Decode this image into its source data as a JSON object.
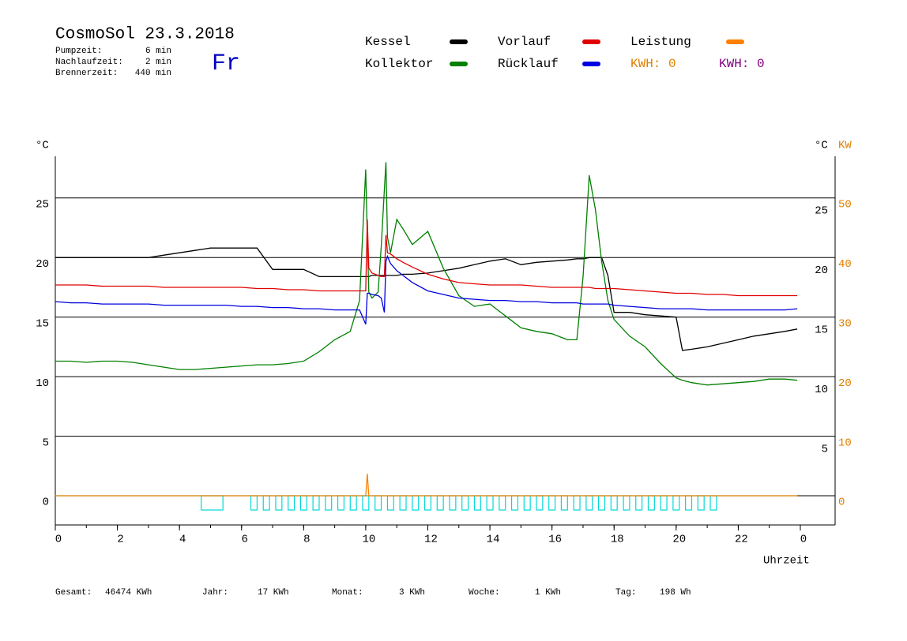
{
  "header": {
    "title": "CosmoSol 23.3.2018",
    "day": "Fr",
    "stats": [
      {
        "label": "Pumpzeit:",
        "value": "6 min"
      },
      {
        "label": "Nachlaufzeit:",
        "value": "2 min"
      },
      {
        "label": "Brennerzeit:",
        "value": "440 min"
      }
    ]
  },
  "footer": [
    {
      "label": "Gesamt:",
      "value": "46474 KWh"
    },
    {
      "label": "Jahr:",
      "value": "17 KWh"
    },
    {
      "label": "Monat:",
      "value": "3 KWh"
    },
    {
      "label": "Woche:",
      "value": "1 KWh"
    },
    {
      "label": "Tag:",
      "value": "198 Wh"
    }
  ],
  "chart_data": {
    "type": "line",
    "ylabel": "°C",
    "y2label_left": "°C",
    "y2label": "KW",
    "xlabel": "Uhrzeit",
    "kwh_labels": [
      {
        "text": "KWH: 0",
        "color": "#e08000"
      },
      {
        "text": "KWH: 0",
        "color": "#800080"
      }
    ],
    "xlim": [
      0,
      25.12
    ],
    "ylim": [
      -2.45,
      28.5
    ],
    "y2lim": [
      -4.9,
      57
    ],
    "xticks": [
      0,
      2,
      4,
      6,
      8,
      10,
      12,
      14,
      16,
      18,
      20,
      22,
      {
        "value": 24,
        "label": "0"
      }
    ],
    "yticks": [
      0,
      5,
      10,
      15,
      20,
      25
    ],
    "yticks_right": [
      5,
      10,
      15,
      20,
      25
    ],
    "y2ticks": [
      0,
      10,
      20,
      30,
      40,
      50
    ],
    "grid": true,
    "x": [
      0,
      0.5,
      1,
      1.5,
      2,
      2.5,
      3,
      3.5,
      4,
      4.5,
      5,
      5.5,
      6,
      6.5,
      7,
      7.5,
      8,
      8.5,
      9,
      9.5,
      9.8,
      10,
      10.05,
      10.1,
      10.2,
      10.4,
      10.5,
      10.6,
      10.65,
      10.7,
      10.8,
      11,
      11.2,
      11.5,
      12,
      12.5,
      13,
      13.5,
      14,
      14.5,
      15,
      15.5,
      16,
      16.5,
      16.8,
      17,
      17.2,
      17.4,
      17.6,
      17.8,
      18,
      18.5,
      19,
      19.5,
      20,
      20.2,
      20.5,
      21,
      21.5,
      22,
      22.5,
      23,
      23.5,
      23.9
    ],
    "series": [
      {
        "name": "Kessel",
        "color": "#000000",
        "values": [
          20.0,
          20.0,
          20.0,
          20.0,
          20.0,
          20.0,
          20.0,
          20.2,
          20.4,
          20.6,
          20.8,
          20.8,
          20.8,
          20.8,
          19.0,
          19.0,
          19.0,
          18.4,
          18.4,
          18.4,
          18.4,
          18.4,
          18.4,
          18.4,
          18.5,
          18.5,
          18.5,
          18.5,
          18.5,
          18.5,
          18.5,
          18.5,
          18.6,
          18.6,
          18.7,
          18.9,
          19.1,
          19.4,
          19.7,
          19.9,
          19.4,
          19.6,
          19.7,
          19.8,
          19.9,
          19.9,
          20.0,
          20.0,
          20.0,
          18.5,
          15.4,
          15.4,
          15.2,
          15.1,
          15.0,
          12.2,
          12.3,
          12.5,
          12.8,
          13.1,
          13.4,
          13.6,
          13.8,
          14.0
        ]
      },
      {
        "name": "Kollektor",
        "color": "#008000",
        "values": [
          11.3,
          11.3,
          11.2,
          11.3,
          11.3,
          11.2,
          11.0,
          10.8,
          10.6,
          10.6,
          10.7,
          10.8,
          10.9,
          11.0,
          11.0,
          11.1,
          11.3,
          12.1,
          13.1,
          13.8,
          16.4,
          27.4,
          21.7,
          17.1,
          16.6,
          17.1,
          21.0,
          25.7,
          28.0,
          21.7,
          20.4,
          23.2,
          22.4,
          21.1,
          22.2,
          19.1,
          16.8,
          15.9,
          16.1,
          15.1,
          14.1,
          13.8,
          13.6,
          13.1,
          13.1,
          18.4,
          26.9,
          24.0,
          19.7,
          16.4,
          14.8,
          13.4,
          12.5,
          11.1,
          9.9,
          9.7,
          9.5,
          9.3,
          9.4,
          9.5,
          9.6,
          9.8,
          9.8,
          9.7
        ]
      },
      {
        "name": "Vorlauf",
        "color": "#e00000",
        "values": [
          17.7,
          17.7,
          17.7,
          17.6,
          17.6,
          17.6,
          17.6,
          17.5,
          17.5,
          17.5,
          17.5,
          17.5,
          17.5,
          17.4,
          17.4,
          17.3,
          17.3,
          17.2,
          17.2,
          17.2,
          17.2,
          17.2,
          23.2,
          19.1,
          18.7,
          18.5,
          18.4,
          18.4,
          21.9,
          20.4,
          20.3,
          19.9,
          19.6,
          19.2,
          18.6,
          18.2,
          17.9,
          17.8,
          17.7,
          17.7,
          17.7,
          17.6,
          17.5,
          17.5,
          17.5,
          17.5,
          17.5,
          17.4,
          17.4,
          17.4,
          17.4,
          17.3,
          17.2,
          17.1,
          17.0,
          17.0,
          17.0,
          16.9,
          16.9,
          16.8,
          16.8,
          16.8,
          16.8,
          16.8
        ]
      },
      {
        "name": "Rücklauf",
        "color": "#0000e0",
        "values": [
          16.3,
          16.2,
          16.2,
          16.1,
          16.1,
          16.1,
          16.1,
          16.0,
          16.0,
          16.0,
          16.0,
          16.0,
          15.9,
          15.9,
          15.8,
          15.8,
          15.7,
          15.7,
          15.6,
          15.6,
          15.6,
          14.4,
          17.0,
          17.0,
          16.9,
          16.8,
          16.6,
          15.4,
          19.7,
          20.1,
          19.5,
          18.9,
          18.5,
          17.9,
          17.2,
          16.9,
          16.6,
          16.5,
          16.4,
          16.4,
          16.3,
          16.3,
          16.2,
          16.2,
          16.2,
          16.1,
          16.1,
          16.1,
          16.1,
          16.1,
          16.0,
          15.9,
          15.8,
          15.7,
          15.7,
          15.7,
          15.7,
          15.6,
          15.6,
          15.6,
          15.6,
          15.6,
          15.6,
          15.7
        ]
      },
      {
        "name": "Leistung",
        "color": "#ff8000",
        "axis": "y2",
        "values": [
          0,
          0,
          0,
          0,
          0,
          0,
          0,
          0,
          0,
          0,
          0,
          0,
          0,
          0,
          0,
          0,
          0,
          0,
          0,
          0,
          0,
          0,
          3.7,
          0,
          0,
          0,
          0,
          0,
          0,
          0,
          0,
          0,
          0,
          0,
          0,
          0,
          0,
          0,
          0,
          0,
          0,
          0,
          0,
          0,
          0,
          0,
          0,
          0,
          0,
          0,
          0,
          0,
          0,
          0,
          0,
          0,
          0,
          0,
          0,
          0,
          0,
          0,
          0,
          0
        ]
      }
    ],
    "pump_color": "#00d8d8",
    "pump_on": [
      [
        4.7,
        5.4
      ],
      [
        6.3,
        6.5
      ],
      [
        6.7,
        6.9
      ],
      [
        7.1,
        7.3
      ],
      [
        7.5,
        7.7
      ],
      [
        7.9,
        8.1
      ],
      [
        8.3,
        8.5
      ],
      [
        8.7,
        8.9
      ],
      [
        9.1,
        9.3
      ],
      [
        9.5,
        9.7
      ],
      [
        9.9,
        10.1
      ],
      [
        10.3,
        10.5
      ],
      [
        10.7,
        10.9
      ],
      [
        11.1,
        11.3
      ],
      [
        11.5,
        11.7
      ],
      [
        11.9,
        12.1
      ],
      [
        12.3,
        12.5
      ],
      [
        12.7,
        12.9
      ],
      [
        13.1,
        13.3
      ],
      [
        13.5,
        13.7
      ],
      [
        13.9,
        14.1
      ],
      [
        14.3,
        14.5
      ],
      [
        14.7,
        14.9
      ],
      [
        15.1,
        15.3
      ],
      [
        15.5,
        15.7
      ],
      [
        15.9,
        16.1
      ],
      [
        16.3,
        16.5
      ],
      [
        16.7,
        16.9
      ],
      [
        17.1,
        17.3
      ],
      [
        17.5,
        17.7
      ],
      [
        17.9,
        18.1
      ],
      [
        18.3,
        18.5
      ],
      [
        18.7,
        18.9
      ],
      [
        19.1,
        19.3
      ],
      [
        19.5,
        19.7
      ],
      [
        19.9,
        20.1
      ],
      [
        20.3,
        20.5
      ],
      [
        20.7,
        20.9
      ],
      [
        21.1,
        21.3
      ]
    ]
  }
}
